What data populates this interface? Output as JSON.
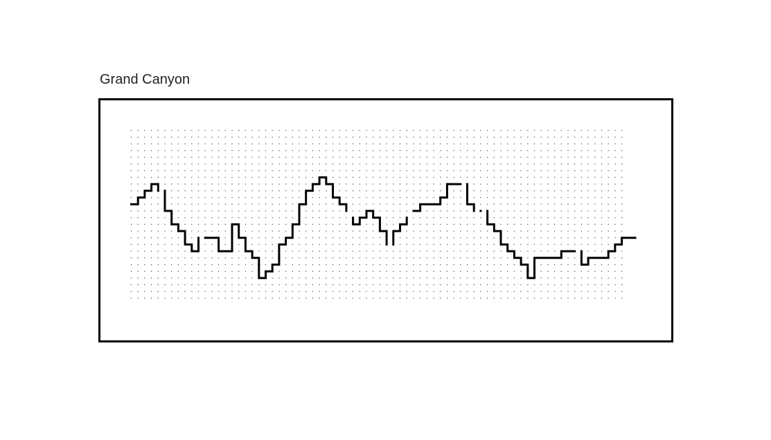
{
  "puzzle": {
    "title": "Grand Canyon",
    "grid": {
      "cols": 74,
      "rows": 26
    },
    "ink_color": "#000000",
    "dot_color": "#444444",
    "segments": [
      {
        "id": "left-ridge",
        "points": [
          [
            0,
            11
          ],
          [
            1,
            11
          ],
          [
            1,
            10
          ],
          [
            2,
            10
          ],
          [
            2,
            9
          ],
          [
            3,
            9
          ],
          [
            3,
            8
          ],
          [
            4,
            8
          ],
          [
            4,
            9
          ]
        ]
      },
      {
        "id": "left-slope",
        "points": [
          [
            5,
            9
          ],
          [
            5,
            12
          ],
          [
            6,
            12
          ],
          [
            6,
            14
          ],
          [
            7,
            14
          ],
          [
            7,
            15
          ],
          [
            8,
            15
          ],
          [
            8,
            17
          ],
          [
            9,
            17
          ],
          [
            9,
            18
          ],
          [
            10,
            18
          ],
          [
            10,
            16
          ]
        ]
      },
      {
        "id": "left-valley",
        "points": [
          [
            11,
            16
          ],
          [
            13,
            16
          ],
          [
            13,
            18
          ],
          [
            15,
            18
          ],
          [
            15,
            14
          ],
          [
            16,
            14
          ],
          [
            16,
            16
          ],
          [
            17,
            16
          ],
          [
            17,
            18
          ],
          [
            18,
            18
          ],
          [
            18,
            19
          ],
          [
            19,
            19
          ],
          [
            19,
            20
          ]
        ]
      },
      {
        "id": "canyon-floor-left",
        "points": [
          [
            19,
            20
          ],
          [
            19,
            22
          ],
          [
            20,
            22
          ],
          [
            20,
            21
          ],
          [
            21,
            21
          ],
          [
            21,
            20
          ],
          [
            22,
            20
          ],
          [
            22,
            19
          ]
        ]
      },
      {
        "id": "central-peak",
        "points": [
          [
            22,
            19
          ],
          [
            22,
            17
          ],
          [
            23,
            17
          ],
          [
            23,
            16
          ],
          [
            24,
            16
          ],
          [
            24,
            14
          ],
          [
            25,
            14
          ],
          [
            25,
            11
          ],
          [
            26,
            11
          ],
          [
            26,
            9
          ],
          [
            27,
            9
          ],
          [
            27,
            8
          ],
          [
            28,
            8
          ],
          [
            28,
            7
          ],
          [
            29,
            7
          ],
          [
            29,
            8
          ],
          [
            30,
            8
          ],
          [
            30,
            10
          ],
          [
            31,
            10
          ],
          [
            31,
            11
          ],
          [
            32,
            11
          ],
          [
            32,
            12
          ]
        ]
      },
      {
        "id": "central-hump",
        "points": [
          [
            33,
            13
          ],
          [
            33,
            14
          ],
          [
            34,
            14
          ],
          [
            34,
            13
          ],
          [
            35,
            13
          ],
          [
            35,
            12
          ],
          [
            36,
            12
          ],
          [
            36,
            13
          ],
          [
            37,
            13
          ],
          [
            37,
            15
          ],
          [
            38,
            15
          ],
          [
            38,
            17
          ]
        ]
      },
      {
        "id": "central-notch",
        "points": [
          [
            39,
            17
          ],
          [
            39,
            15
          ],
          [
            40,
            15
          ],
          [
            40,
            14
          ],
          [
            41,
            14
          ],
          [
            41,
            13
          ]
        ]
      },
      {
        "id": "right-plateau",
        "points": [
          [
            42,
            12
          ],
          [
            43,
            12
          ],
          [
            43,
            11
          ],
          [
            46,
            11
          ],
          [
            46,
            10
          ],
          [
            47,
            10
          ],
          [
            47,
            8
          ],
          [
            49,
            8
          ]
        ]
      },
      {
        "id": "right-drop",
        "points": [
          [
            50,
            8
          ],
          [
            50,
            11
          ],
          [
            51,
            11
          ],
          [
            51,
            12
          ]
        ]
      },
      {
        "id": "right-stub",
        "points": [
          [
            52,
            12
          ],
          [
            52,
            12
          ]
        ]
      },
      {
        "id": "right-descent",
        "points": [
          [
            53,
            12
          ],
          [
            53,
            14
          ],
          [
            54,
            14
          ],
          [
            54,
            15
          ],
          [
            55,
            15
          ],
          [
            55,
            17
          ],
          [
            56,
            17
          ],
          [
            56,
            18
          ],
          [
            57,
            18
          ],
          [
            57,
            19
          ],
          [
            58,
            19
          ],
          [
            58,
            20
          ],
          [
            59,
            20
          ],
          [
            59,
            21
          ]
        ]
      },
      {
        "id": "canyon-floor-right",
        "points": [
          [
            59,
            21
          ],
          [
            59,
            22
          ],
          [
            60,
            22
          ],
          [
            60,
            19
          ],
          [
            64,
            19
          ],
          [
            64,
            18
          ],
          [
            66,
            18
          ]
        ]
      },
      {
        "id": "right-rise",
        "points": [
          [
            67,
            18
          ],
          [
            67,
            20
          ],
          [
            68,
            20
          ],
          [
            68,
            19
          ],
          [
            71,
            19
          ],
          [
            71,
            18
          ],
          [
            72,
            18
          ],
          [
            72,
            17
          ],
          [
            73,
            17
          ],
          [
            73,
            16
          ],
          [
            75,
            16
          ]
        ]
      }
    ]
  }
}
